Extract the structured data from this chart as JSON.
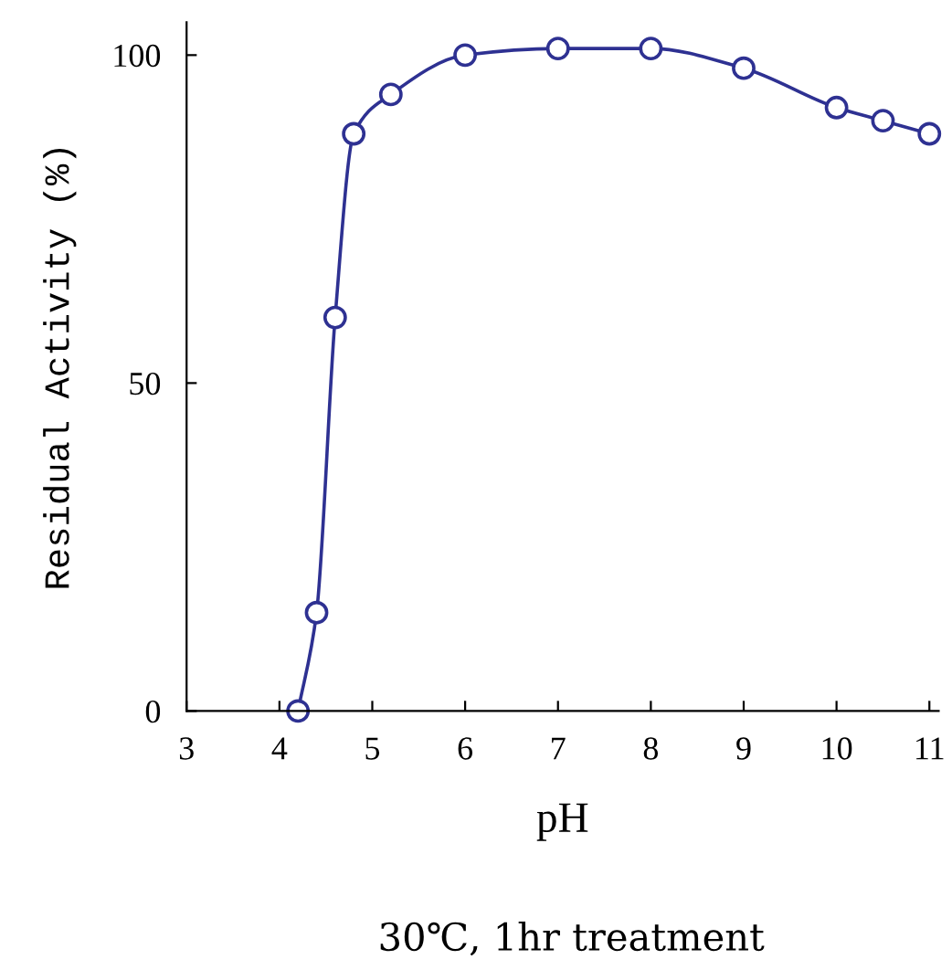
{
  "chart_data": {
    "type": "line",
    "xlabel": "pH",
    "ylabel": "Residual Activity (%)",
    "annotations": [
      "30℃, 1hr treatment"
    ],
    "x": [
      4.2,
      4.4,
      4.6,
      4.8,
      5.2,
      6,
      7,
      8,
      9,
      10,
      10.5,
      11
    ],
    "series": [
      {
        "color": "#2e3192",
        "values": [
          0,
          15,
          60,
          88,
          94,
          100,
          101,
          101,
          98,
          92,
          90,
          88
        ]
      }
    ],
    "xlim": [
      3,
      11.1
    ],
    "ylim": [
      0,
      105
    ],
    "xticks": [
      3,
      4,
      5,
      6,
      7,
      8,
      9,
      10,
      11
    ],
    "yticks": [
      0,
      50,
      100
    ],
    "marker": "circle",
    "line_style": "solid",
    "grid": false,
    "legend": false
  }
}
